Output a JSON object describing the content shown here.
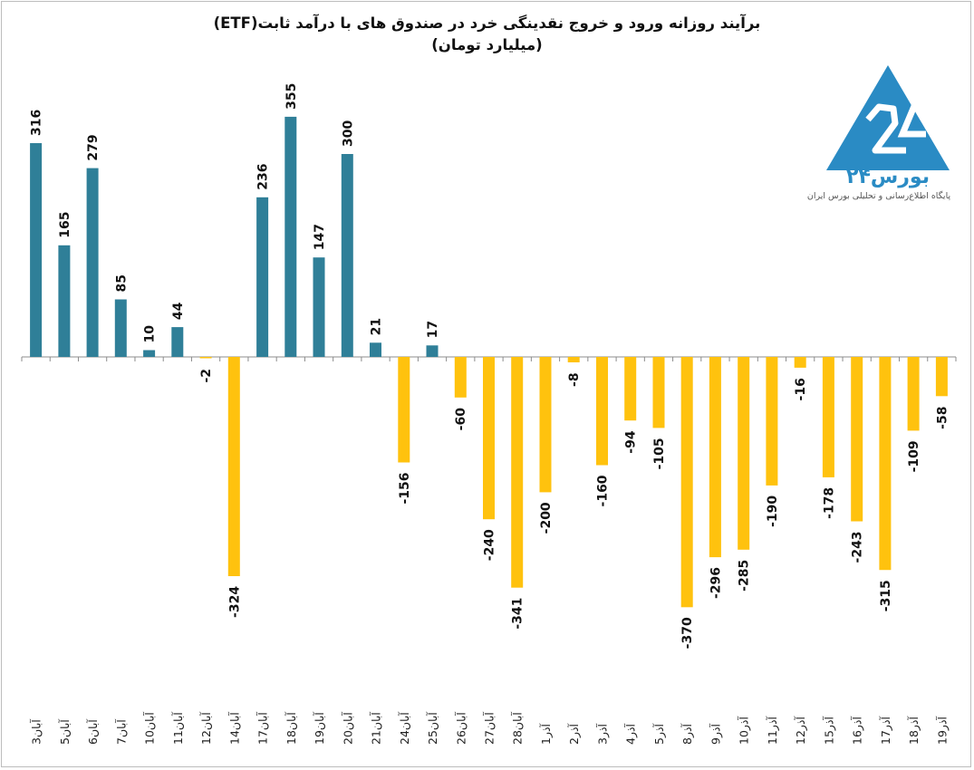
{
  "title": {
    "line1": "برآیند روزانه ورود و خروج نقدینگی خرد در صندوق های با درآمد ثابت(ETF)",
    "line2": "(میلیارد تومان)"
  },
  "logo": {
    "name": "بورس۲۴",
    "tagline": "پایگاه اطلاع‌رسانی و تحلیلی بورس ایران"
  },
  "colors": {
    "positive": "#2f7f98",
    "negative": "#ffc20e",
    "logo": "#2a8bc4"
  },
  "chart_data": {
    "type": "bar",
    "title": "برآیند روزانه ورود و خروج نقدینگی خرد در صندوق های با درآمد ثابت(ETF)",
    "subtitle": "(میلیارد تومان)",
    "categories": [
      "3آبان",
      "5آبان",
      "6آبان",
      "7آبان",
      "10آبان",
      "11آبان",
      "12آبان",
      "14آبان",
      "17آبان",
      "18آبان",
      "19آبان",
      "20آبان",
      "21آبان",
      "24آبان",
      "25آبان",
      "26آبان",
      "27آبان",
      "28آبان",
      "1آذر",
      "2آذر",
      "3آذر",
      "4آذر",
      "5آذر",
      "8آذر",
      "9آذر",
      "10آذر",
      "11آذر",
      "12آذر",
      "15آذر",
      "16آذر",
      "17آذر",
      "18آذر",
      "19آذر"
    ],
    "values": [
      316,
      165,
      279,
      85,
      10,
      44,
      -2,
      -324,
      236,
      355,
      147,
      300,
      21,
      -156,
      17,
      -60,
      -240,
      -341,
      -200,
      -8,
      -160,
      -94,
      -105,
      -370,
      -296,
      -285,
      -190,
      -16,
      -178,
      -243,
      -315,
      -109,
      -58
    ],
    "ylim": [
      -370,
      355
    ],
    "grid": false,
    "legend": "none"
  }
}
